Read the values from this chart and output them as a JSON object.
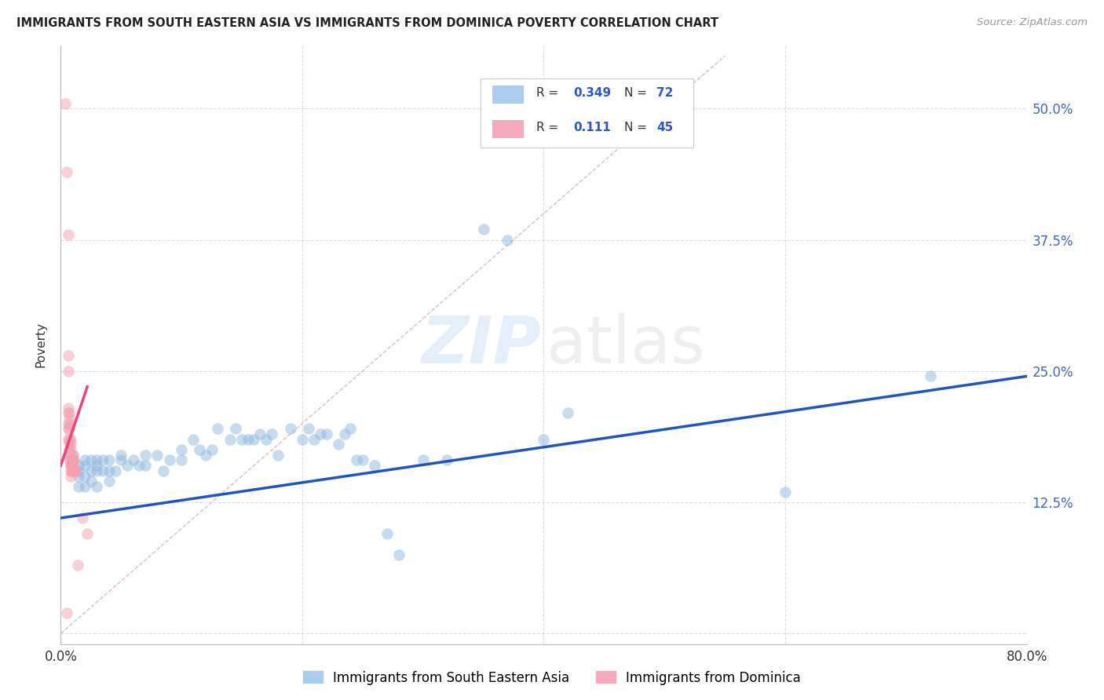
{
  "title": "IMMIGRANTS FROM SOUTH EASTERN ASIA VS IMMIGRANTS FROM DOMINICA POVERTY CORRELATION CHART",
  "source": "Source: ZipAtlas.com",
  "ylabel": "Poverty",
  "ytick_values": [
    0.0,
    0.125,
    0.25,
    0.375,
    0.5
  ],
  "ytick_labels": [
    "",
    "12.5%",
    "25.0%",
    "37.5%",
    "50.0%"
  ],
  "xlim": [
    0.0,
    0.8
  ],
  "ylim": [
    -0.01,
    0.56
  ],
  "legend_blue_r": "0.349",
  "legend_blue_n": "72",
  "legend_pink_r": "0.111",
  "legend_pink_n": "45",
  "blue_scatter_color": "#90B8E0",
  "pink_scatter_color": "#F4A0B0",
  "blue_line_color": "#2255BB",
  "pink_line_color": "#EE4477",
  "diag_line_color": "#DDAAAA",
  "grid_color": "#DDDDDD",
  "blue_scatter_x": [
    0.01,
    0.01,
    0.01,
    0.015,
    0.015,
    0.015,
    0.015,
    0.02,
    0.02,
    0.02,
    0.02,
    0.025,
    0.025,
    0.025,
    0.03,
    0.03,
    0.03,
    0.03,
    0.035,
    0.035,
    0.04,
    0.04,
    0.04,
    0.045,
    0.05,
    0.05,
    0.055,
    0.06,
    0.065,
    0.07,
    0.07,
    0.08,
    0.085,
    0.09,
    0.1,
    0.1,
    0.11,
    0.115,
    0.12,
    0.125,
    0.13,
    0.14,
    0.145,
    0.15,
    0.155,
    0.16,
    0.165,
    0.17,
    0.175,
    0.18,
    0.19,
    0.2,
    0.205,
    0.21,
    0.215,
    0.22,
    0.23,
    0.235,
    0.24,
    0.245,
    0.25,
    0.26,
    0.27,
    0.28,
    0.3,
    0.32,
    0.35,
    0.37,
    0.4,
    0.42,
    0.6,
    0.72
  ],
  "blue_scatter_y": [
    0.155,
    0.165,
    0.17,
    0.16,
    0.155,
    0.15,
    0.14,
    0.165,
    0.16,
    0.15,
    0.14,
    0.165,
    0.155,
    0.145,
    0.165,
    0.16,
    0.155,
    0.14,
    0.165,
    0.155,
    0.165,
    0.155,
    0.145,
    0.155,
    0.17,
    0.165,
    0.16,
    0.165,
    0.16,
    0.17,
    0.16,
    0.17,
    0.155,
    0.165,
    0.175,
    0.165,
    0.185,
    0.175,
    0.17,
    0.175,
    0.195,
    0.185,
    0.195,
    0.185,
    0.185,
    0.185,
    0.19,
    0.185,
    0.19,
    0.17,
    0.195,
    0.185,
    0.195,
    0.185,
    0.19,
    0.19,
    0.18,
    0.19,
    0.195,
    0.165,
    0.165,
    0.16,
    0.095,
    0.075,
    0.165,
    0.165,
    0.385,
    0.375,
    0.185,
    0.21,
    0.135,
    0.245
  ],
  "pink_scatter_x": [
    0.004,
    0.005,
    0.006,
    0.006,
    0.006,
    0.006,
    0.006,
    0.006,
    0.006,
    0.006,
    0.007,
    0.007,
    0.007,
    0.007,
    0.007,
    0.007,
    0.007,
    0.007,
    0.007,
    0.008,
    0.008,
    0.008,
    0.008,
    0.008,
    0.008,
    0.008,
    0.008,
    0.009,
    0.009,
    0.009,
    0.009,
    0.009,
    0.01,
    0.01,
    0.01,
    0.01,
    0.01,
    0.011,
    0.011,
    0.012,
    0.012,
    0.014,
    0.018,
    0.022,
    0.005
  ],
  "pink_scatter_y": [
    0.505,
    0.44,
    0.38,
    0.265,
    0.25,
    0.215,
    0.21,
    0.2,
    0.195,
    0.185,
    0.21,
    0.205,
    0.2,
    0.195,
    0.185,
    0.18,
    0.175,
    0.17,
    0.165,
    0.165,
    0.16,
    0.155,
    0.15,
    0.175,
    0.18,
    0.185,
    0.16,
    0.165,
    0.16,
    0.155,
    0.16,
    0.155,
    0.17,
    0.165,
    0.16,
    0.155,
    0.155,
    0.165,
    0.155,
    0.155,
    0.155,
    0.065,
    0.11,
    0.095,
    0.02
  ],
  "blue_trendline_x": [
    0.0,
    0.8
  ],
  "blue_trendline_y": [
    0.11,
    0.245
  ],
  "pink_trendline_x": [
    0.0,
    0.022
  ],
  "pink_trendline_y": [
    0.16,
    0.235
  ],
  "diag_line_x": [
    0.0,
    0.55
  ],
  "diag_line_y": [
    0.0,
    0.55
  ]
}
